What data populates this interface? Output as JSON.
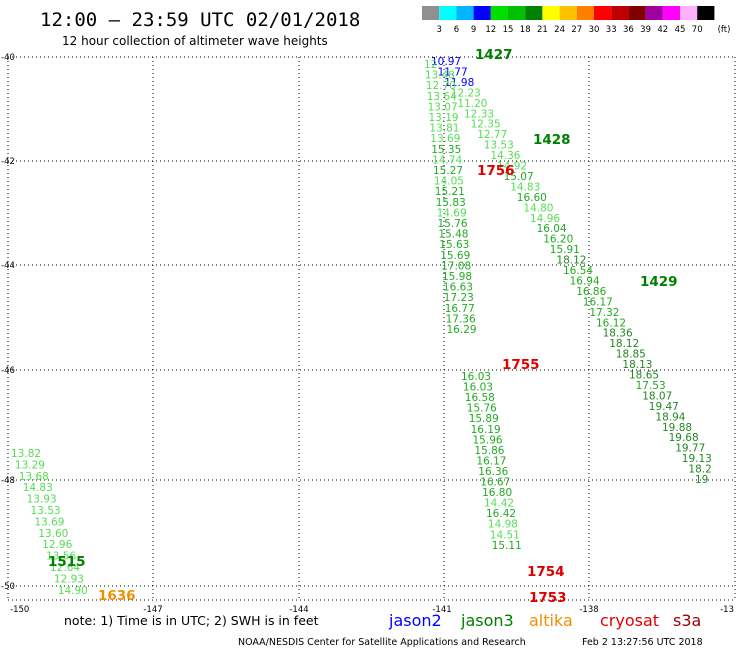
{
  "header": {
    "title": "12:00 – 23:59 UTC 02/01/2018",
    "subtitle": "12 hour collection of altimeter wave heights"
  },
  "color_scale": {
    "unit": "(ft)",
    "ticks": [
      "3",
      "6",
      "9",
      "12",
      "15",
      "18",
      "21",
      "24",
      "27",
      "30",
      "33",
      "36",
      "39",
      "42",
      "45",
      "70"
    ],
    "colors": [
      "#909090",
      "#00ffff",
      "#00b4ff",
      "#0000ff",
      "#00e000",
      "#00c000",
      "#008000",
      "#ffff00",
      "#ffc000",
      "#ff8000",
      "#ff0000",
      "#c00000",
      "#800000",
      "#a000a0",
      "#ff00ff",
      "#ffb0ff",
      "#000000"
    ]
  },
  "axes": {
    "x_ticks": [
      "-150",
      "-147",
      "-144",
      "-141",
      "-138",
      "-13"
    ],
    "y_ticks": [
      "-40",
      "-42",
      "-44",
      "-46",
      "-48",
      "-50"
    ]
  },
  "tracks": [
    {
      "name": "track-1427",
      "time_label": "1427",
      "label_color": "#008000",
      "points": [
        {
          "v": "10.97",
          "c": "#0000ff"
        },
        {
          "v": "11.77",
          "c": "#0000ff"
        },
        {
          "v": "11.98",
          "c": "#0000ff"
        },
        {
          "v": "12.23",
          "c": "#55dd55"
        },
        {
          "v": "11.20",
          "c": "#55dd55"
        },
        {
          "v": "12.33",
          "c": "#55dd55"
        },
        {
          "v": "12.35",
          "c": "#55dd55"
        },
        {
          "v": "12.77",
          "c": "#55dd55"
        },
        {
          "v": "13.53",
          "c": "#55dd55"
        },
        {
          "v": "14.36",
          "c": "#55dd55"
        },
        {
          "v": "14.92",
          "c": "#55dd55"
        },
        {
          "v": "15.07",
          "c": "#22aa22"
        },
        {
          "v": "14.83",
          "c": "#55dd55"
        },
        {
          "v": "16.60",
          "c": "#22aa22"
        },
        {
          "v": "14.80",
          "c": "#55dd55"
        },
        {
          "v": "14.96",
          "c": "#55dd55"
        },
        {
          "v": "16.04",
          "c": "#22aa22"
        },
        {
          "v": "16.20",
          "c": "#22aa22"
        },
        {
          "v": "15.91",
          "c": "#22aa22"
        },
        {
          "v": "18.12",
          "c": "#228822"
        },
        {
          "v": "16.54",
          "c": "#22aa22"
        },
        {
          "v": "16.94",
          "c": "#22aa22"
        },
        {
          "v": "16.86",
          "c": "#22aa22"
        },
        {
          "v": "16.17",
          "c": "#22aa22"
        },
        {
          "v": "17.32",
          "c": "#22aa22"
        },
        {
          "v": "16.12",
          "c": "#22aa22"
        },
        {
          "v": "18.36",
          "c": "#228822"
        },
        {
          "v": "18.12",
          "c": "#228822"
        },
        {
          "v": "18.85",
          "c": "#228822"
        },
        {
          "v": "18.13",
          "c": "#228822"
        },
        {
          "v": "18.65",
          "c": "#228822"
        },
        {
          "v": "17.53",
          "c": "#22aa22"
        },
        {
          "v": "18.07",
          "c": "#228822"
        },
        {
          "v": "19.47",
          "c": "#228822"
        },
        {
          "v": "18.94",
          "c": "#228822"
        },
        {
          "v": "19.88",
          "c": "#228822"
        },
        {
          "v": "19.68",
          "c": "#228822"
        },
        {
          "v": "19.77",
          "c": "#228822"
        },
        {
          "v": "19.13",
          "c": "#228822"
        },
        {
          "v": "18.2",
          "c": "#228822"
        },
        {
          "v": "19",
          "c": "#228822"
        }
      ]
    },
    {
      "name": "track-1428",
      "time_label": "1428",
      "label_color": "#008000",
      "points": []
    },
    {
      "name": "track-1429",
      "time_label": "1429",
      "label_color": "#008000",
      "points": []
    },
    {
      "name": "track-1756",
      "time_label": "1756",
      "label_color": "#e00000",
      "points": [
        {
          "v": "12.",
          "c": "#55dd55"
        },
        {
          "v": "13.48",
          "c": "#55dd55"
        },
        {
          "v": "12.70",
          "c": "#55dd55"
        },
        {
          "v": "13.64",
          "c": "#55dd55"
        },
        {
          "v": "13.07",
          "c": "#55dd55"
        },
        {
          "v": "13.19",
          "c": "#55dd55"
        },
        {
          "v": "13.81",
          "c": "#55dd55"
        },
        {
          "v": "13.69",
          "c": "#55dd55"
        },
        {
          "v": "15.35",
          "c": "#22aa22"
        },
        {
          "v": "14.74",
          "c": "#55dd55"
        },
        {
          "v": "15.27",
          "c": "#22aa22"
        },
        {
          "v": "14.05",
          "c": "#55dd55"
        },
        {
          "v": "15.21",
          "c": "#22aa22"
        },
        {
          "v": "15.83",
          "c": "#22aa22"
        },
        {
          "v": "14.69",
          "c": "#55dd55"
        },
        {
          "v": "15.76",
          "c": "#22aa22"
        },
        {
          "v": "15.48",
          "c": "#22aa22"
        },
        {
          "v": "15.63",
          "c": "#22aa22"
        },
        {
          "v": "15.69",
          "c": "#22aa22"
        },
        {
          "v": "17.08",
          "c": "#22aa22"
        },
        {
          "v": "15.98",
          "c": "#22aa22"
        },
        {
          "v": "16.63",
          "c": "#22aa22"
        },
        {
          "v": "17.23",
          "c": "#22aa22"
        },
        {
          "v": "16.77",
          "c": "#22aa22"
        },
        {
          "v": "17.36",
          "c": "#22aa22"
        },
        {
          "v": "16.29",
          "c": "#22aa22"
        }
      ]
    },
    {
      "name": "track-1755",
      "time_label": "1755",
      "label_color": "#e00000",
      "points": [
        {
          "v": "16.03",
          "c": "#22aa22"
        },
        {
          "v": "16.03",
          "c": "#22aa22"
        },
        {
          "v": "16.58",
          "c": "#22aa22"
        },
        {
          "v": "15.76",
          "c": "#22aa22"
        },
        {
          "v": "15.89",
          "c": "#22aa22"
        },
        {
          "v": "16.19",
          "c": "#22aa22"
        },
        {
          "v": "15.96",
          "c": "#22aa22"
        },
        {
          "v": "15.86",
          "c": "#22aa22"
        },
        {
          "v": "16.17",
          "c": "#22aa22"
        },
        {
          "v": "16.36",
          "c": "#22aa22"
        },
        {
          "v": "16.67",
          "c": "#22aa22"
        },
        {
          "v": "16.80",
          "c": "#22aa22"
        },
        {
          "v": "14.42",
          "c": "#55dd55"
        },
        {
          "v": "16.42",
          "c": "#22aa22"
        },
        {
          "v": "14.98",
          "c": "#55dd55"
        },
        {
          "v": "14.51",
          "c": "#55dd55"
        },
        {
          "v": "15.11",
          "c": "#22aa22"
        }
      ]
    },
    {
      "name": "track-1754",
      "time_label": "1754",
      "label_color": "#e00000",
      "points": []
    },
    {
      "name": "track-1753",
      "time_label": "1753",
      "label_color": "#e00000",
      "points": []
    },
    {
      "name": "track-1515",
      "time_label": "1515",
      "label_color": "#008000",
      "points": [
        {
          "v": "13.82",
          "c": "#55dd55"
        },
        {
          "v": "13.29",
          "c": "#55dd55"
        },
        {
          "v": "13.68",
          "c": "#55dd55"
        },
        {
          "v": "14.83",
          "c": "#55dd55"
        },
        {
          "v": "13.93",
          "c": "#55dd55"
        },
        {
          "v": "13.53",
          "c": "#55dd55"
        },
        {
          "v": "13.69",
          "c": "#55dd55"
        },
        {
          "v": "13.60",
          "c": "#55dd55"
        },
        {
          "v": "12.96",
          "c": "#55dd55"
        },
        {
          "v": "13.56",
          "c": "#55dd55"
        },
        {
          "v": "12.64",
          "c": "#55dd55"
        },
        {
          "v": "12.93",
          "c": "#55dd55"
        },
        {
          "v": "14.90",
          "c": "#55dd55"
        }
      ]
    },
    {
      "name": "track-1636",
      "time_label": "1636",
      "label_color": "#f09000",
      "points": []
    }
  ],
  "footer": {
    "note": "note: 1) Time is in UTC; 2) SWH is in feet",
    "legend": [
      {
        "name": "jason2",
        "color": "#0000ff"
      },
      {
        "name": "jason3",
        "color": "#008000"
      },
      {
        "name": "altika",
        "color": "#f09000"
      },
      {
        "name": "cryosat",
        "color": "#e00000"
      },
      {
        "name": "s3a",
        "color": "#a00000"
      }
    ],
    "credit": "NOAA/NESDIS Center for Satellite Applications and Research",
    "timestamp": "Feb  2 13:27:56 UTC 2018"
  }
}
